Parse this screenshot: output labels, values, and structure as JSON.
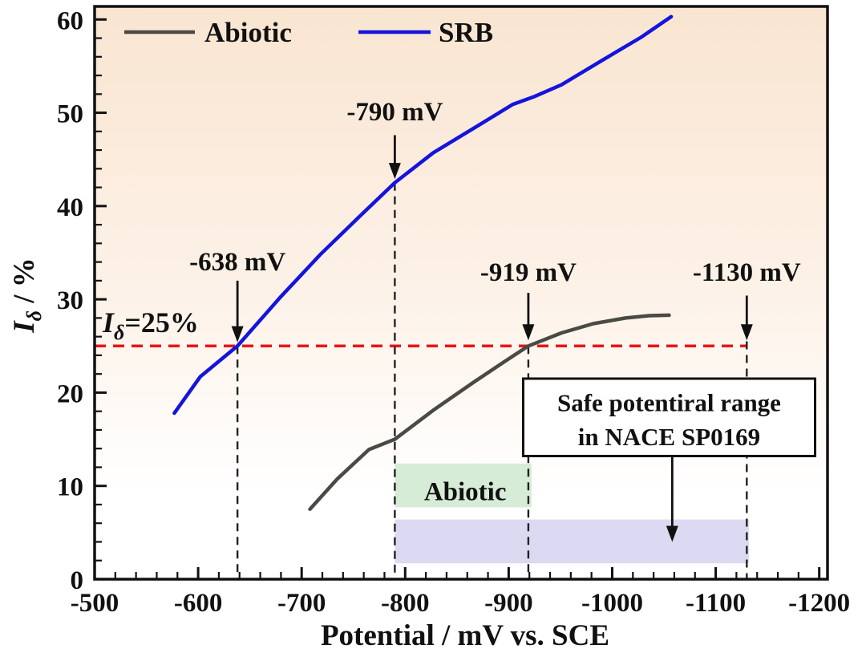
{
  "labels": {
    "x_axis_title": "Potential / mV vs. SCE",
    "y_axis_main": "I",
    "y_axis_sub": "δ",
    "y_axis_rest": " / %",
    "ref_main": "I",
    "ref_sub": "δ",
    "ref_rest": "=25%",
    "safe_box_line1": "Safe potentiral range",
    "safe_box_line2": "in NACE SP0169",
    "green_region_label": "Abiotic"
  },
  "legend": {
    "position": "top-left inside plot",
    "items": [
      {
        "label": "Abiotic",
        "color": "#4a4a45"
      },
      {
        "label": "SRB",
        "color": "#1414dc"
      }
    ]
  },
  "colors": {
    "srb_line": "#1414dc",
    "abiotic_line": "#4a4a45",
    "reference_red": "#ea1414",
    "green_region": "#d7ecd7",
    "lavender_region": "#dcdaf2",
    "axis": "#111111",
    "bg_top": "#f9e5d1",
    "bg_mid": "#fdf2e8",
    "bg_bottom": "#ffffff"
  },
  "chart_data": {
    "type": "line",
    "title": "",
    "xlabel": "Potential / mV vs. SCE",
    "ylabel": "Iδ / %",
    "x_axis": {
      "left_value": -500,
      "right_value": -1208,
      "reversed": true,
      "tick_values": [
        -500,
        -600,
        -700,
        -800,
        -900,
        -1000,
        -1100,
        -1200
      ],
      "tick_labels": [
        "-500",
        "-600",
        "-700",
        "-800",
        "-900",
        "-1000",
        "-1100",
        "-1200"
      ],
      "minor_step": 20
    },
    "y_axis": {
      "min": 0,
      "max": 61.4,
      "tick_values": [
        0,
        10,
        20,
        30,
        40,
        50,
        60
      ],
      "tick_labels": [
        "0",
        "10",
        "20",
        "30",
        "40",
        "50",
        "60"
      ],
      "minor_step": 2
    },
    "series": [
      {
        "name": "SRB",
        "color": "#1414dc",
        "points": [
          [
            -577,
            17.8
          ],
          [
            -602,
            21.7
          ],
          [
            -638,
            25
          ],
          [
            -680,
            30.3
          ],
          [
            -718,
            34.8
          ],
          [
            -757,
            39
          ],
          [
            -790,
            42.5
          ],
          [
            -827,
            45.7
          ],
          [
            -873,
            48.8
          ],
          [
            -904,
            50.9
          ],
          [
            -924,
            51.7
          ],
          [
            -951,
            53
          ],
          [
            -990,
            55.6
          ],
          [
            -1028,
            58.1
          ],
          [
            -1057,
            60.3
          ]
        ]
      },
      {
        "name": "Abiotic",
        "color": "#4a4a45",
        "points": [
          [
            -708,
            7.5
          ],
          [
            -734,
            10.7
          ],
          [
            -765,
            13.9
          ],
          [
            -790,
            15
          ],
          [
            -827,
            18.1
          ],
          [
            -866,
            21.1
          ],
          [
            -897,
            23.4
          ],
          [
            -919,
            25
          ],
          [
            -951,
            26.4
          ],
          [
            -982,
            27.4
          ],
          [
            -1013,
            28
          ],
          [
            -1036,
            28.25
          ],
          [
            -1055,
            28.3
          ]
        ]
      }
    ],
    "reference_line": {
      "label": "Iδ=25%",
      "y_value": 25,
      "x_from": -500,
      "x_to": -1130,
      "color": "#ea1414",
      "style": "dashed"
    },
    "annotations": [
      {
        "label": "-638 mV",
        "x": -638,
        "text_y": 33.1,
        "arrow_from_y": 32.0,
        "arrow_to_y": 25.4,
        "dash_from_y": 25.0
      },
      {
        "label": "-790 mV",
        "x": -790,
        "text_y": 49.2,
        "arrow_from_y": 47.6,
        "arrow_to_y": 42.9,
        "dash_from_y": 42.5
      },
      {
        "label": "-919 mV",
        "x": -919,
        "text_y": 32.0,
        "arrow_from_y": 30.7,
        "arrow_to_y": 25.6,
        "dash_from_y": 25.0
      },
      {
        "label": "-1130 mV",
        "x": -1130,
        "text_y": 32.0,
        "arrow_from_y": 30.4,
        "arrow_to_y": 25.6,
        "dash_from_y": 25.5
      }
    ],
    "regions": [
      {
        "name": "abiotic-safe-region",
        "label": "Abiotic",
        "x_range": [
          -790,
          -922
        ],
        "y_range": [
          7.7,
          12.4
        ],
        "fill": "#d7ecd7",
        "label_pos": [
          -858,
          9.5
        ]
      },
      {
        "name": "nace-safe-region",
        "label": "",
        "x_range": [
          -790,
          -1132
        ],
        "y_range": [
          1.7,
          6.4
        ],
        "fill": "#dcdaf2"
      }
    ],
    "safe_box": {
      "lines": [
        "Safe potentiral range",
        "in NACE SP0169"
      ],
      "x_range": [
        -914,
        -1196
      ],
      "y_range": [
        13.2,
        21.5
      ],
      "arrow_x": -1058,
      "arrow_from_y": 13.2,
      "arrow_to_y": 4.0
    }
  }
}
